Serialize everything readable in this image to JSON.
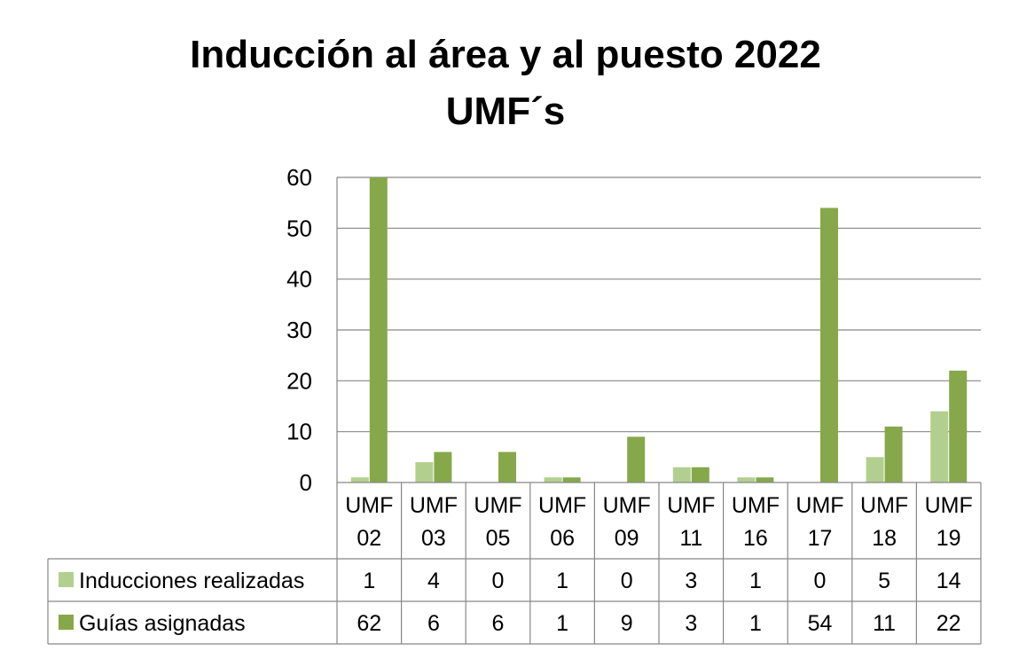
{
  "chart_data": {
    "type": "bar",
    "title_line1": "Inducción al área y al puesto 2022",
    "title_line2": "UMF´s",
    "categories": [
      [
        "UMF",
        "02"
      ],
      [
        "UMF",
        "03"
      ],
      [
        "UMF",
        "05"
      ],
      [
        "UMF",
        "06"
      ],
      [
        "UMF",
        "09"
      ],
      [
        "UMF",
        "11"
      ],
      [
        "UMF",
        "16"
      ],
      [
        "UMF",
        "17"
      ],
      [
        "UMF",
        "18"
      ],
      [
        "UMF",
        "19"
      ]
    ],
    "series": [
      {
        "name": "Inducciones realizadas",
        "color": "#b3cf8f",
        "values": [
          1,
          4,
          0,
          1,
          0,
          3,
          1,
          0,
          5,
          14
        ]
      },
      {
        "name": "Guías asignadas",
        "color": "#86a84a",
        "values": [
          62,
          6,
          6,
          1,
          9,
          3,
          1,
          54,
          11,
          22
        ]
      }
    ],
    "ylim": [
      0,
      60
    ],
    "yticks": [
      0,
      10,
      20,
      30,
      40,
      50,
      60
    ],
    "grid": true,
    "legend": "data-table-below"
  }
}
